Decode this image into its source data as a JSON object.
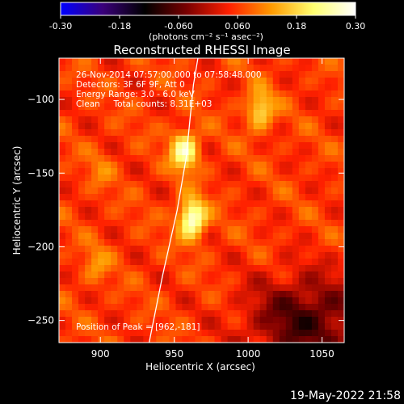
{
  "colorbar": {
    "tick_labels": [
      "-0.30",
      "-0.18",
      "-0.060",
      "0.060",
      "0.18",
      "0.30"
    ],
    "tick_values": [
      -0.3,
      -0.18,
      -0.06,
      0.06,
      0.18,
      0.3
    ],
    "range": [
      -0.3,
      0.3
    ],
    "unit_label": "(photons cm⁻² s⁻¹ asec⁻²)",
    "colormap": [
      "#0000ff",
      "#3a007a",
      "#000000",
      "#7a0000",
      "#ff2000",
      "#ff9a00",
      "#ffff70",
      "#ffffff"
    ]
  },
  "title": "Reconstructed RHESSI Image",
  "annotations": {
    "time": "26-Nov-2014 07:57:00.000 to 07:58:48.000",
    "detectors": "Detectors: 3F 6F 9F, Att 0",
    "energy": "Energy Range: 3.0 - 6.0 keV",
    "clean": "Clean     Total counts: 8.31E+03",
    "peak": "Position of Peak = [962,-181]"
  },
  "footer_timestamp": "19-May-2022 21:58",
  "chart_data": {
    "type": "heatmap",
    "title": "Reconstructed RHESSI Image",
    "xlabel": "Heliocentric X (arcsec)",
    "ylabel": "Heliocentric Y (arcsec)",
    "xlim": [
      872,
      1065
    ],
    "ylim": [
      -265,
      -72
    ],
    "x_ticks": [
      900,
      950,
      1000,
      1050
    ],
    "x_tick_labels": [
      "900",
      "950",
      "1000",
      "1050"
    ],
    "y_ticks": [
      -100,
      -150,
      -200,
      -250
    ],
    "y_tick_labels": [
      "−100",
      "−150",
      "−200",
      "−250"
    ],
    "zlim": [
      -0.3,
      0.3
    ],
    "peak": [
      962,
      -181
    ],
    "sources": [
      {
        "x": 962,
        "y": -181,
        "value": 0.3
      },
      {
        "x": 957,
        "y": -135,
        "value": 0.26
      },
      {
        "x": 1008,
        "y": -107,
        "value": 0.2
      },
      {
        "x": 900,
        "y": -148,
        "value": 0.1
      },
      {
        "x": 897,
        "y": -212,
        "value": 0.12
      }
    ],
    "limb": [
      [
        933,
        -265
      ],
      [
        942,
        -220
      ],
      [
        952,
        -175
      ],
      [
        958,
        -140
      ],
      [
        963,
        -90
      ],
      [
        966,
        -72
      ]
    ]
  }
}
